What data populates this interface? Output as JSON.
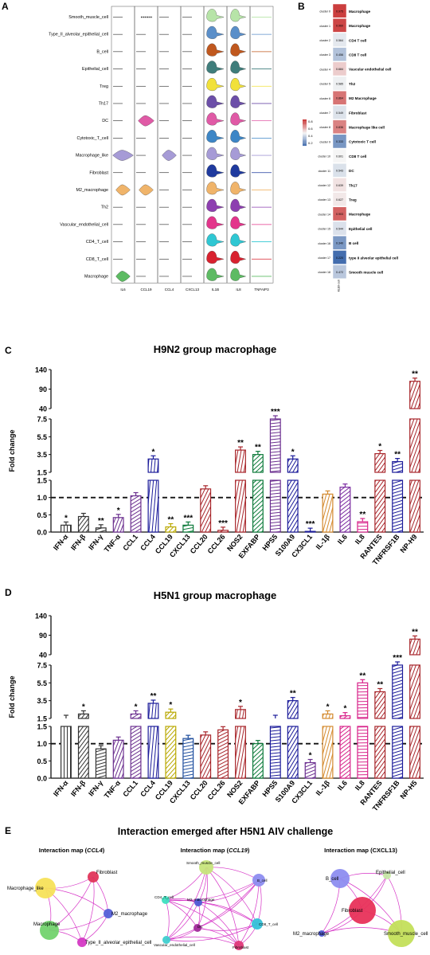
{
  "panels": {
    "A": "A",
    "B": "B",
    "C": "C",
    "D": "D",
    "E": "E"
  },
  "panelA": {
    "cell_types": [
      "Smooth_muscle_cell",
      "Type_II_alveolar_epithelial_cell",
      "B_cell",
      "Epithelial_cell",
      "Treg",
      "Th17",
      "DC",
      "Cytotoxic_T_cell",
      "Macrophage_like",
      "Fibroblast",
      "M2_macrophage",
      "Th2",
      "Vascular_endothelial_cell",
      "CD4_T_cell",
      "CD8_T_cell",
      "Macrophage"
    ],
    "genes": [
      "IL6",
      "CCL19",
      "CCL4",
      "CXCL13",
      "IL1B",
      "IL8",
      "TNFAIP3"
    ],
    "colors": [
      "#b7e4a8",
      "#5b8fc9",
      "#c0581e",
      "#3f7d7b",
      "#f1e13a",
      "#6c4fa8",
      "#e05aa6",
      "#3d86c6",
      "#a69bd6",
      "#1f3a9e",
      "#f0b46a",
      "#8d3fb0",
      "#e3358b",
      "#2fc7d3",
      "#d8222f",
      "#5dbb63"
    ],
    "shapes": {
      "IL6": {
        "8": "long",
        "10": "mid",
        "15": "mid"
      },
      "CCL19": {
        "0": "dot",
        "6": "wide",
        "10": "mid"
      },
      "CCL4": {
        "8": "mid"
      },
      "CXCL13": {}
    }
  },
  "panelB": {
    "clusters": [
      {
        "cluster": "cluster 0",
        "value": "0.975",
        "label": "Macrophage",
        "score": 0.975
      },
      {
        "cluster": "cluster 1",
        "value": "0.960",
        "label": "Macrophage",
        "score": 0.96
      },
      {
        "cluster": "cluster 2",
        "value": "0.564",
        "label": "CD4 T cell",
        "score": 0.564
      },
      {
        "cluster": "cluster 3",
        "value": "0.456",
        "label": "CD8 T cell",
        "score": 0.456
      },
      {
        "cluster": "cluster 4",
        "value": "0.684",
        "label": "Vascular endothelial cell",
        "score": 0.684
      },
      {
        "cluster": "cluster 5",
        "value": "0.585",
        "label": "Th2",
        "score": 0.585
      },
      {
        "cluster": "cluster 6",
        "value": "0.864",
        "label": "M2 Macrophage",
        "score": 0.864
      },
      {
        "cluster": "cluster 7",
        "value": "0.549",
        "label": "Fibroblast",
        "score": 0.549
      },
      {
        "cluster": "cluster 8",
        "value": "0.836",
        "label": "Macrophage like cell",
        "score": 0.836
      },
      {
        "cluster": "cluster 9",
        "value": "0.333",
        "label": "Cytotoxic T cell",
        "score": 0.333
      },
      {
        "cluster": "cluster 10",
        "value": "0.601",
        "label": "CD8 T cell",
        "score": 0.601
      },
      {
        "cluster": "cluster 11",
        "value": "0.543",
        "label": "DC",
        "score": 0.543
      },
      {
        "cluster": "cluster 12",
        "value": "0.639",
        "label": "Th17",
        "score": 0.639
      },
      {
        "cluster": "cluster 13",
        "value": "0.627",
        "label": "Treg",
        "score": 0.627
      },
      {
        "cluster": "cluster 14",
        "value": "0.903",
        "label": "Macrophage",
        "score": 0.903
      },
      {
        "cluster": "cluster 15",
        "value": "0.544",
        "label": "Epithelial cell",
        "score": 0.544
      },
      {
        "cluster": "cluster 16",
        "value": "0.340",
        "label": "B cell",
        "score": 0.34
      },
      {
        "cluster": "cluster 17",
        "value": "0.220",
        "label": "type II alveolar epithelial cell",
        "score": 0.22
      },
      {
        "cluster": "cluster 18",
        "value": "0.472",
        "label": "Smooth muscle cell",
        "score": 0.472
      }
    ],
    "legend": [
      "0.8",
      "0.6",
      "0.4",
      "0.2"
    ],
    "xlabel": "KLEII-cell"
  },
  "chart_data": [
    {
      "type": "bar",
      "title": "H9N2 group macrophage",
      "ylabel": "Fold change",
      "y_ticks": [
        "140",
        "90",
        "40",
        "7.5",
        "5.5",
        "3.5",
        "1.5",
        "1.5",
        "1.0",
        "0.5",
        "0.0"
      ],
      "categories": [
        "IFN-α",
        "IFN-β",
        "IFN-γ",
        "TNF-α",
        "CCL1",
        "CCL4",
        "CCL19",
        "CXCL13",
        "CCL20",
        "CCL26",
        "NOS2",
        "EXFABP",
        "HPS5",
        "S100A9",
        "CX3CL1",
        "IL-1β",
        "IL6",
        "IL8",
        "RANTES",
        "TNFRSF1B",
        "NP-H9"
      ],
      "values": [
        0.2,
        0.45,
        0.12,
        0.42,
        1.05,
        3.0,
        0.15,
        0.2,
        1.25,
        0.05,
        4.0,
        3.5,
        7.5,
        3.0,
        0.02,
        1.1,
        1.3,
        0.3,
        3.6,
        2.7,
        110
      ],
      "significance": [
        "*",
        "",
        "**",
        "*",
        "",
        "*",
        "**",
        "***",
        "",
        "***",
        "**",
        "**",
        "***",
        "*",
        "***",
        "",
        "",
        "**",
        "*",
        "**",
        "**"
      ],
      "colors": [
        "#333333",
        "#333333",
        "#333333",
        "#6b2f8f",
        "#6b2f8f",
        "#1b1b9a",
        "#b9a800",
        "#0c7a3a",
        "#a8262b",
        "#a8262b",
        "#a8262b",
        "#0c7a3a",
        "#6b2f8f",
        "#1b1b9a",
        "#1b1b9a",
        "#d48a2e",
        "#7a2aa0",
        "#d8238a",
        "#a8262b",
        "#1b1b9a",
        "#a8262b"
      ],
      "reference_line": 1.0
    },
    {
      "type": "bar",
      "title": "H5N1 group macrophage",
      "ylabel": "Fold change",
      "y_ticks": [
        "140",
        "90",
        "40",
        "7.5",
        "5.5",
        "3.5",
        "1.5",
        "1.5",
        "1.0",
        "0.5",
        "0.0"
      ],
      "categories": [
        "IFN-α",
        "IFN-β",
        "IFN-γ",
        "TNF-α",
        "CCL1",
        "CCL4",
        "CCL19",
        "CXCL13",
        "CCL20",
        "CCL26",
        "NOS2",
        "EXFABP",
        "HPS5",
        "S100A9",
        "CX3CL1",
        "IL-1β",
        "IL6",
        "IL8",
        "RANTES",
        "TNFRSF1B",
        "NP-H5"
      ],
      "values": [
        1.5,
        2.0,
        0.85,
        1.1,
        2.0,
        3.2,
        2.2,
        1.15,
        1.25,
        1.4,
        2.5,
        1.0,
        1.5,
        3.5,
        0.45,
        2.0,
        1.8,
        5.5,
        4.5,
        7.5,
        80
      ],
      "significance": [
        "",
        "*",
        "",
        "",
        "*",
        "**",
        "*",
        "",
        "",
        "",
        "*",
        "",
        "",
        "**",
        "*",
        "*",
        "*",
        "**",
        "**",
        "***",
        "**"
      ],
      "colors": [
        "#333333",
        "#333333",
        "#333333",
        "#6b2f8f",
        "#6b2f8f",
        "#1b1b9a",
        "#b9a800",
        "#1f4e9e",
        "#a8262b",
        "#a8262b",
        "#a8262b",
        "#0c7a3a",
        "#1b1b9a",
        "#1b1b9a",
        "#6b2f8f",
        "#d48a2e",
        "#d8238a",
        "#d8238a",
        "#a8262b",
        "#1b1b9a",
        "#a8262b"
      ],
      "reference_line": 1.0
    }
  ],
  "panelE": {
    "title": "Interaction emerged after H5N1 AIV challenge",
    "maps": [
      {
        "title_prefix": "Interaction map (",
        "gene": "CCL4",
        "title_suffix": ")",
        "nodes": [
          {
            "label": "Fibroblast",
            "color": "#e0355a",
            "r": 7
          },
          {
            "label": "Macrophage_like",
            "color": "#f7e15a",
            "r": 13
          },
          {
            "label": "M2_macrophage",
            "color": "#5560d8",
            "r": 6
          },
          {
            "label": "Macrophage",
            "color": "#72d36e",
            "r": 12
          },
          {
            "label": "Type_II_alveolar_epithelial_cell",
            "color": "#d43ac4",
            "r": 6
          }
        ]
      },
      {
        "title_prefix": "Interaction map (",
        "gene": "CCL19",
        "title_suffix": ")",
        "nodes": [
          {
            "label": "Smooth_muscle_cell",
            "color": "#c7e57c",
            "r": 9
          },
          {
            "label": "B_cell",
            "color": "#8d8df0",
            "r": 8
          },
          {
            "label": "CD4_T_cell",
            "color": "#3fe0c0",
            "r": 5
          },
          {
            "label": "M2_macrophage",
            "color": "#4e5ad4",
            "r": 5
          },
          {
            "label": "CD8_T_cell",
            "color": "#35c2d8",
            "r": 7
          },
          {
            "label": "DC",
            "color": "#a12a9a",
            "r": 5
          },
          {
            "label": "Vascular_endothelial_cell",
            "color": "#3fcfcf",
            "r": 5
          },
          {
            "label": "Fibroblast",
            "color": "#e03a7a",
            "r": 6
          }
        ]
      },
      {
        "title_prefix": "Interaction map (",
        "gene": "CXCL13",
        "title_suffix": ")",
        "nodes": [
          {
            "label": "B_cell",
            "color": "#8d8df0",
            "r": 12
          },
          {
            "label": "Epithelial_cell",
            "color": "#c7e9a6",
            "r": 5
          },
          {
            "label": "Fibroblast",
            "color": "#e8315a",
            "r": 17
          },
          {
            "label": "M2_macrophage",
            "color": "#4e5ad4",
            "r": 4
          },
          {
            "label": "Smooth_muscle_cell",
            "color": "#c3df5a",
            "r": 17
          }
        ]
      }
    ]
  }
}
